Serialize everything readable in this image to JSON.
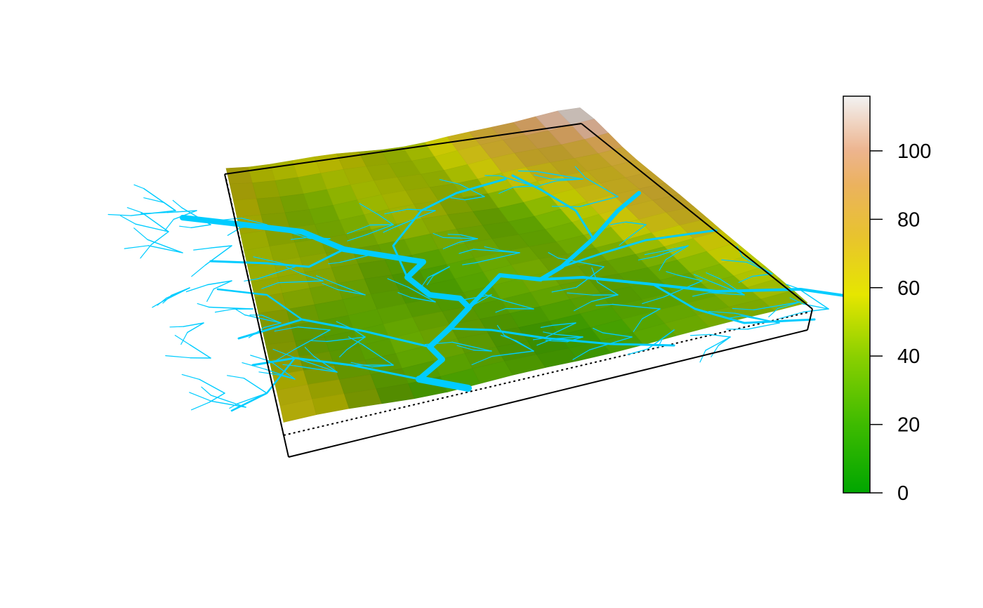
{
  "chart_data": {
    "type": "heatmap",
    "subtype": "3d-perspective-surface-with-river-network",
    "title": "",
    "xlabel": "",
    "ylabel": "",
    "grid": false,
    "legend": "colorbar-right",
    "colorbar": {
      "ticks": [
        0,
        20,
        40,
        60,
        80,
        100
      ],
      "tick_labels": [
        "0",
        "20",
        "40",
        "60",
        "80",
        "100"
      ],
      "range": [
        0,
        116
      ],
      "stops": [
        {
          "value": 0,
          "color": "#00A600"
        },
        {
          "value": 20,
          "color": "#3EBB00"
        },
        {
          "value": 40,
          "color": "#8BD000"
        },
        {
          "value": 58,
          "color": "#E6E600"
        },
        {
          "value": 75,
          "color": "#E8C32E"
        },
        {
          "value": 90,
          "color": "#EBB25E"
        },
        {
          "value": 100,
          "color": "#EDB48E"
        },
        {
          "value": 116,
          "color": "#F2F2F2"
        }
      ]
    },
    "surface": {
      "rows": 16,
      "cols": 16,
      "elevation_range": [
        0,
        116
      ]
    },
    "river_network": {
      "color": "#00CCFF",
      "outlet": "front-center"
    }
  }
}
